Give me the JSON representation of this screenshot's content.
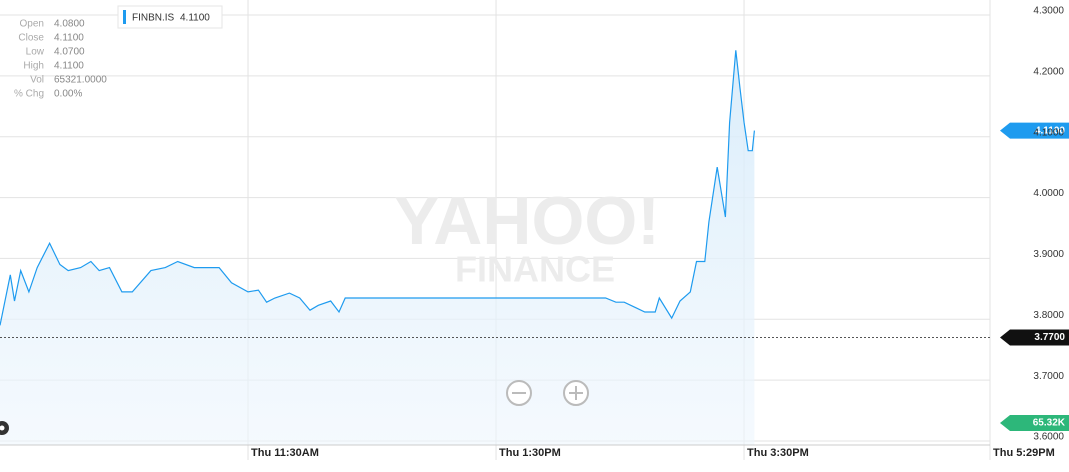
{
  "chart_data": {
    "type": "line",
    "series": [
      {
        "name": "FINBN.IS",
        "color": "#1e9bef",
        "x": [
          570,
          575,
          577,
          580,
          584,
          588,
          594,
          599,
          603,
          609,
          614,
          618,
          623,
          629,
          634,
          643,
          650,
          656,
          664,
          676,
          682,
          690,
          695,
          699,
          703,
          710,
          715,
          720,
          724,
          730,
          734,
          737,
          863,
          868,
          872,
          882,
          887,
          889,
          895,
          899,
          904,
          907,
          911,
          913,
          917,
          921,
          923,
          926,
          928,
          930,
          932,
          934,
          935
        ],
        "values": [
          3.79,
          3.873,
          3.83,
          3.88,
          3.845,
          3.885,
          3.925,
          3.89,
          3.88,
          3.885,
          3.895,
          3.88,
          3.885,
          3.845,
          3.845,
          3.88,
          3.885,
          3.895,
          3.885,
          3.885,
          3.86,
          3.845,
          3.848,
          3.828,
          3.835,
          3.843,
          3.835,
          3.815,
          3.823,
          3.83,
          3.812,
          3.835,
          3.835,
          3.828,
          3.828,
          3.812,
          3.812,
          3.835,
          3.802,
          3.83,
          3.845,
          3.895,
          3.895,
          3.96,
          4.05,
          3.968,
          4.123,
          4.242,
          4.181,
          4.123,
          4.077,
          4.077,
          4.11
        ]
      }
    ],
    "xlim": [
      570,
      1049
    ],
    "xticks": [
      {
        "value": 690,
        "label": "Thu 11:30AM"
      },
      {
        "value": 810,
        "label": "Thu 1:30PM"
      },
      {
        "value": 930,
        "label": "Thu 3:30PM"
      },
      {
        "value": 1049,
        "label": "Thu 5:29PM"
      }
    ],
    "ylim": [
      3.6,
      4.3
    ],
    "yticks": [
      {
        "value": 3.6,
        "label": "3.6000"
      },
      {
        "value": 3.7,
        "label": "3.7000"
      },
      {
        "value": 3.8,
        "label": "3.8000"
      },
      {
        "value": 3.9,
        "label": "3.9000"
      },
      {
        "value": 4.0,
        "label": "4.0000"
      },
      {
        "value": 4.1,
        "label": "4.1000"
      },
      {
        "value": 4.2,
        "label": "4.2000"
      },
      {
        "value": 4.3,
        "label": "4.3000"
      }
    ],
    "grid": true,
    "last_price": {
      "value": 4.11,
      "label": "4.1100",
      "color": "#1e9bef"
    },
    "previous_close": {
      "value": 3.77,
      "label": "3.7700",
      "color": "#111111"
    },
    "volume_label": "65.32K",
    "volume_color": "#2db77a"
  },
  "legend_value": "4.1100",
  "quote_info": [
    [
      "Open",
      "4.0800"
    ],
    [
      "Close",
      "4.1100"
    ],
    [
      "Low",
      "4.0700"
    ],
    [
      "High",
      "4.1100"
    ],
    [
      "Vol",
      "65321.0000"
    ],
    [
      "% Chg",
      "0.00%"
    ]
  ],
  "watermark": [
    "YAHOO!",
    "FINANCE"
  ]
}
